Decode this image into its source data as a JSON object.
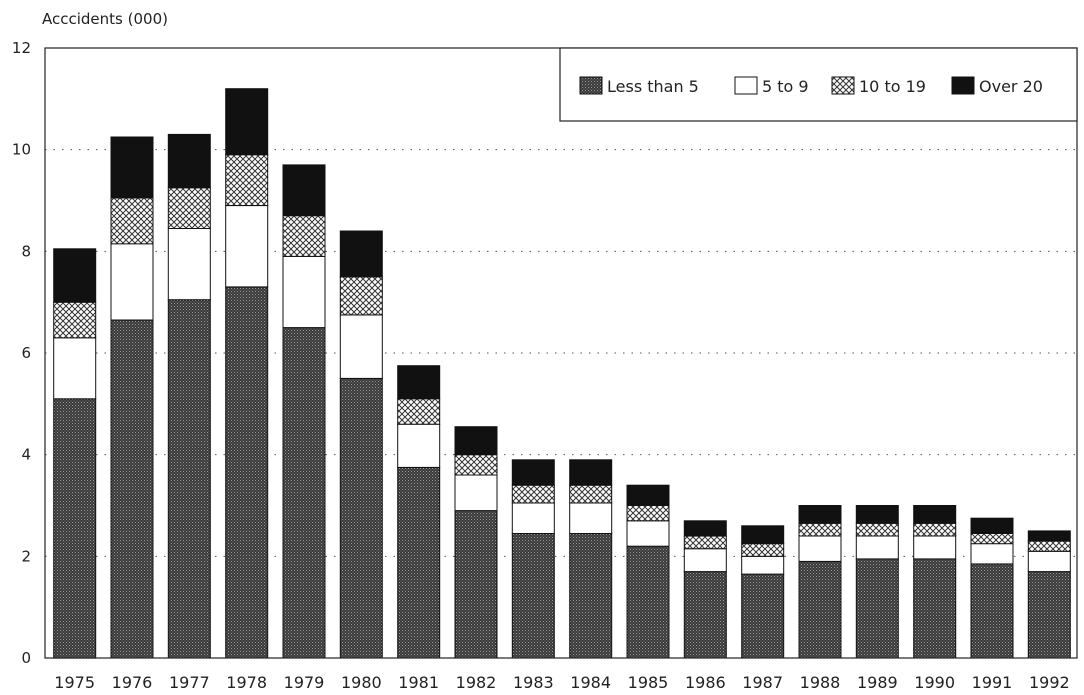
{
  "chart_data": {
    "type": "bar",
    "stacked": true,
    "title": "",
    "ylabel": "Acccidents (000)",
    "xlabel": "",
    "ylim": [
      0,
      12
    ],
    "yticks": [
      "0",
      "2",
      "4",
      "6",
      "8",
      "10",
      "12"
    ],
    "grid": "horizontal dotted",
    "legend_position": "top-right",
    "categories": [
      "1975",
      "1976",
      "1977",
      "1978",
      "1979",
      "1980",
      "1981",
      "1982",
      "1983",
      "1984",
      "1985",
      "1986",
      "1987",
      "1988",
      "1989",
      "1990",
      "1991",
      "1992"
    ],
    "series": [
      {
        "name": "Less than 5",
        "pattern": "dark-dotted",
        "values": [
          5.1,
          6.65,
          7.05,
          7.3,
          6.5,
          5.5,
          3.75,
          2.9,
          2.45,
          2.45,
          2.2,
          1.7,
          1.65,
          1.9,
          1.95,
          1.95,
          1.85,
          1.7
        ]
      },
      {
        "name": "5 to 9",
        "pattern": "white",
        "values": [
          1.2,
          1.5,
          1.4,
          1.6,
          1.4,
          1.25,
          0.85,
          0.7,
          0.6,
          0.6,
          0.5,
          0.45,
          0.35,
          0.5,
          0.45,
          0.45,
          0.4,
          0.4
        ]
      },
      {
        "name": "10 to 19",
        "pattern": "crosshatch",
        "values": [
          0.7,
          0.9,
          0.8,
          1.0,
          0.8,
          0.75,
          0.5,
          0.4,
          0.35,
          0.35,
          0.3,
          0.25,
          0.25,
          0.25,
          0.25,
          0.25,
          0.2,
          0.2
        ]
      },
      {
        "name": "Over 20",
        "pattern": "black",
        "values": [
          1.05,
          1.2,
          1.05,
          1.3,
          1.0,
          0.9,
          0.65,
          0.55,
          0.5,
          0.5,
          0.4,
          0.3,
          0.35,
          0.35,
          0.35,
          0.35,
          0.3,
          0.2
        ]
      }
    ]
  }
}
